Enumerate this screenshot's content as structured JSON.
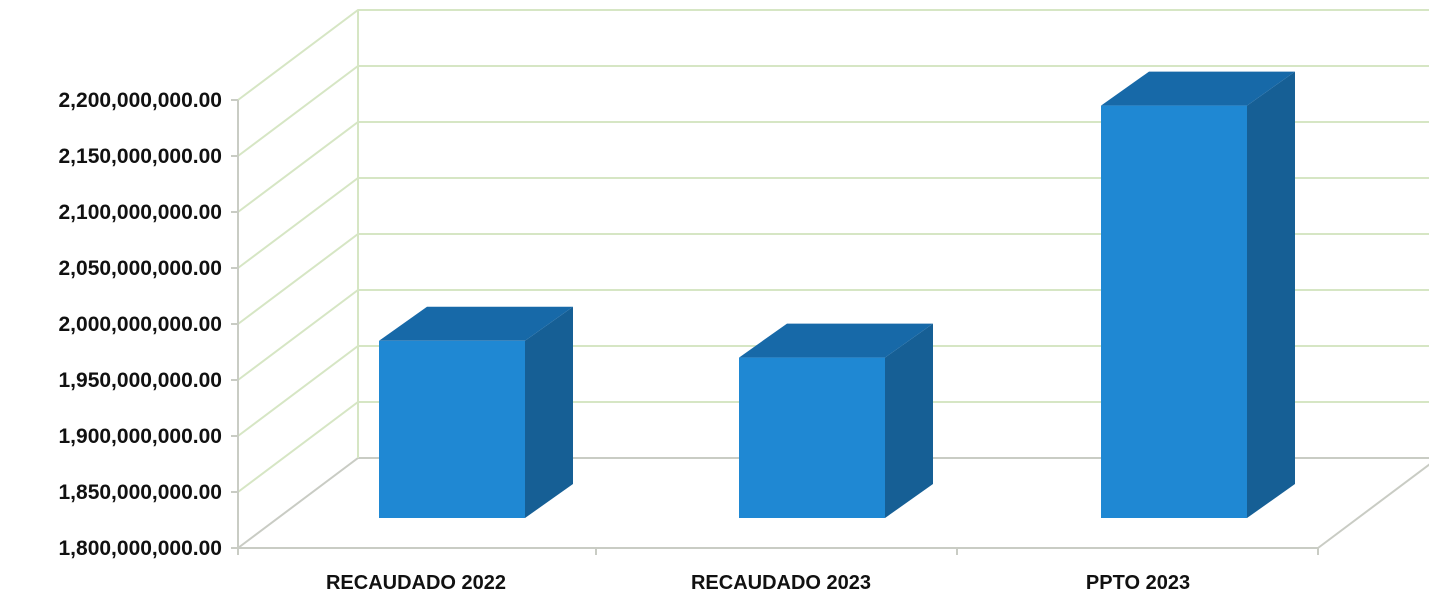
{
  "chart_data": {
    "type": "bar",
    "title": "",
    "xlabel": "",
    "ylabel": "",
    "categories": [
      "RECAUDADO 2022",
      "RECAUDADO 2023",
      "PPTO 2023"
    ],
    "values": [
      1985000000,
      1970000000,
      2195000000
    ],
    "ylim": [
      1800000000,
      2200000000
    ],
    "ytick_step": 50000000,
    "ytick_labels": [
      "1,800,000,000.00",
      "1,850,000,000.00",
      "1,900,000,000.00",
      "1,950,000,000.00",
      "2,000,000,000.00",
      "2,050,000,000.00",
      "2,100,000,000.00",
      "2,150,000,000.00",
      "2,200,000,000.00"
    ],
    "grid": true,
    "style": "3d-column",
    "colors": {
      "bar_front": "#1f88d3",
      "bar_top": "#1769a8",
      "bar_side": "#165f95",
      "grid": "#d6e6c4",
      "axis": "#c9ccc4"
    }
  }
}
